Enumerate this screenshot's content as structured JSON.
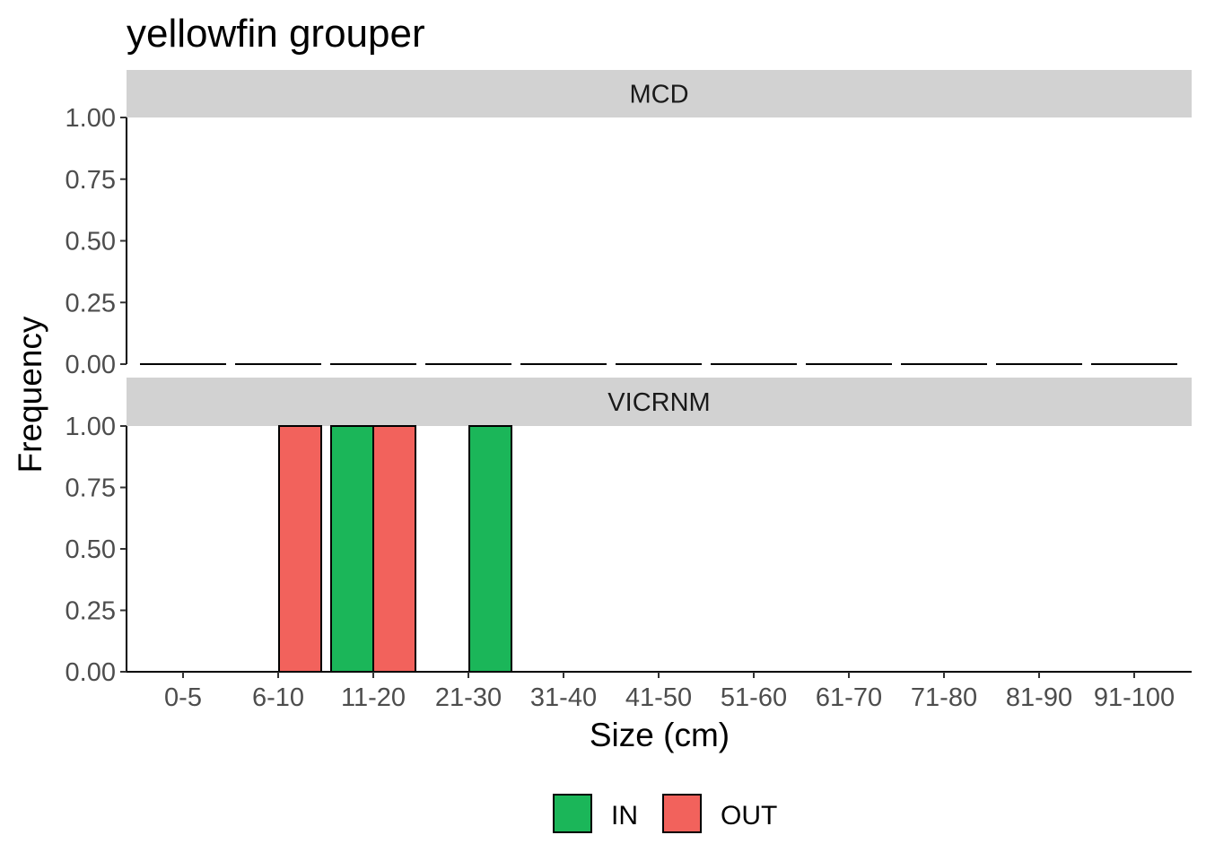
{
  "chart_data": {
    "type": "bar",
    "title": "yellowfin grouper",
    "xlabel": "Size (cm)",
    "ylabel": "Frequency",
    "ylim": [
      0,
      1
    ],
    "yticks": [
      "0.00",
      "0.25",
      "0.50",
      "0.75",
      "1.00"
    ],
    "categories": [
      "0-5",
      "6-10",
      "11-20",
      "21-30",
      "31-40",
      "41-50",
      "51-60",
      "61-70",
      "71-80",
      "81-90",
      "91-100"
    ],
    "legend": {
      "position": "bottom",
      "entries": [
        "IN",
        "OUT"
      ]
    },
    "colors": {
      "IN": "#1bb659",
      "OUT": "#f2625c",
      "strip": "#d2d2d2"
    },
    "panels": [
      {
        "name": "MCD",
        "series": [
          {
            "name": "IN",
            "values": [
              0,
              0,
              0,
              0,
              0,
              0,
              0,
              0,
              0,
              0,
              0
            ]
          },
          {
            "name": "OUT",
            "values": [
              0,
              0,
              0,
              0,
              0,
              0,
              0,
              0,
              0,
              0,
              0
            ]
          }
        ]
      },
      {
        "name": "VICRNM",
        "series": [
          {
            "name": "IN",
            "values": [
              0,
              0,
              1,
              1,
              0,
              0,
              0,
              0,
              0,
              0,
              0
            ]
          },
          {
            "name": "OUT",
            "values": [
              0,
              1,
              1,
              0,
              0,
              0,
              0,
              0,
              0,
              0,
              0
            ]
          }
        ]
      }
    ]
  }
}
